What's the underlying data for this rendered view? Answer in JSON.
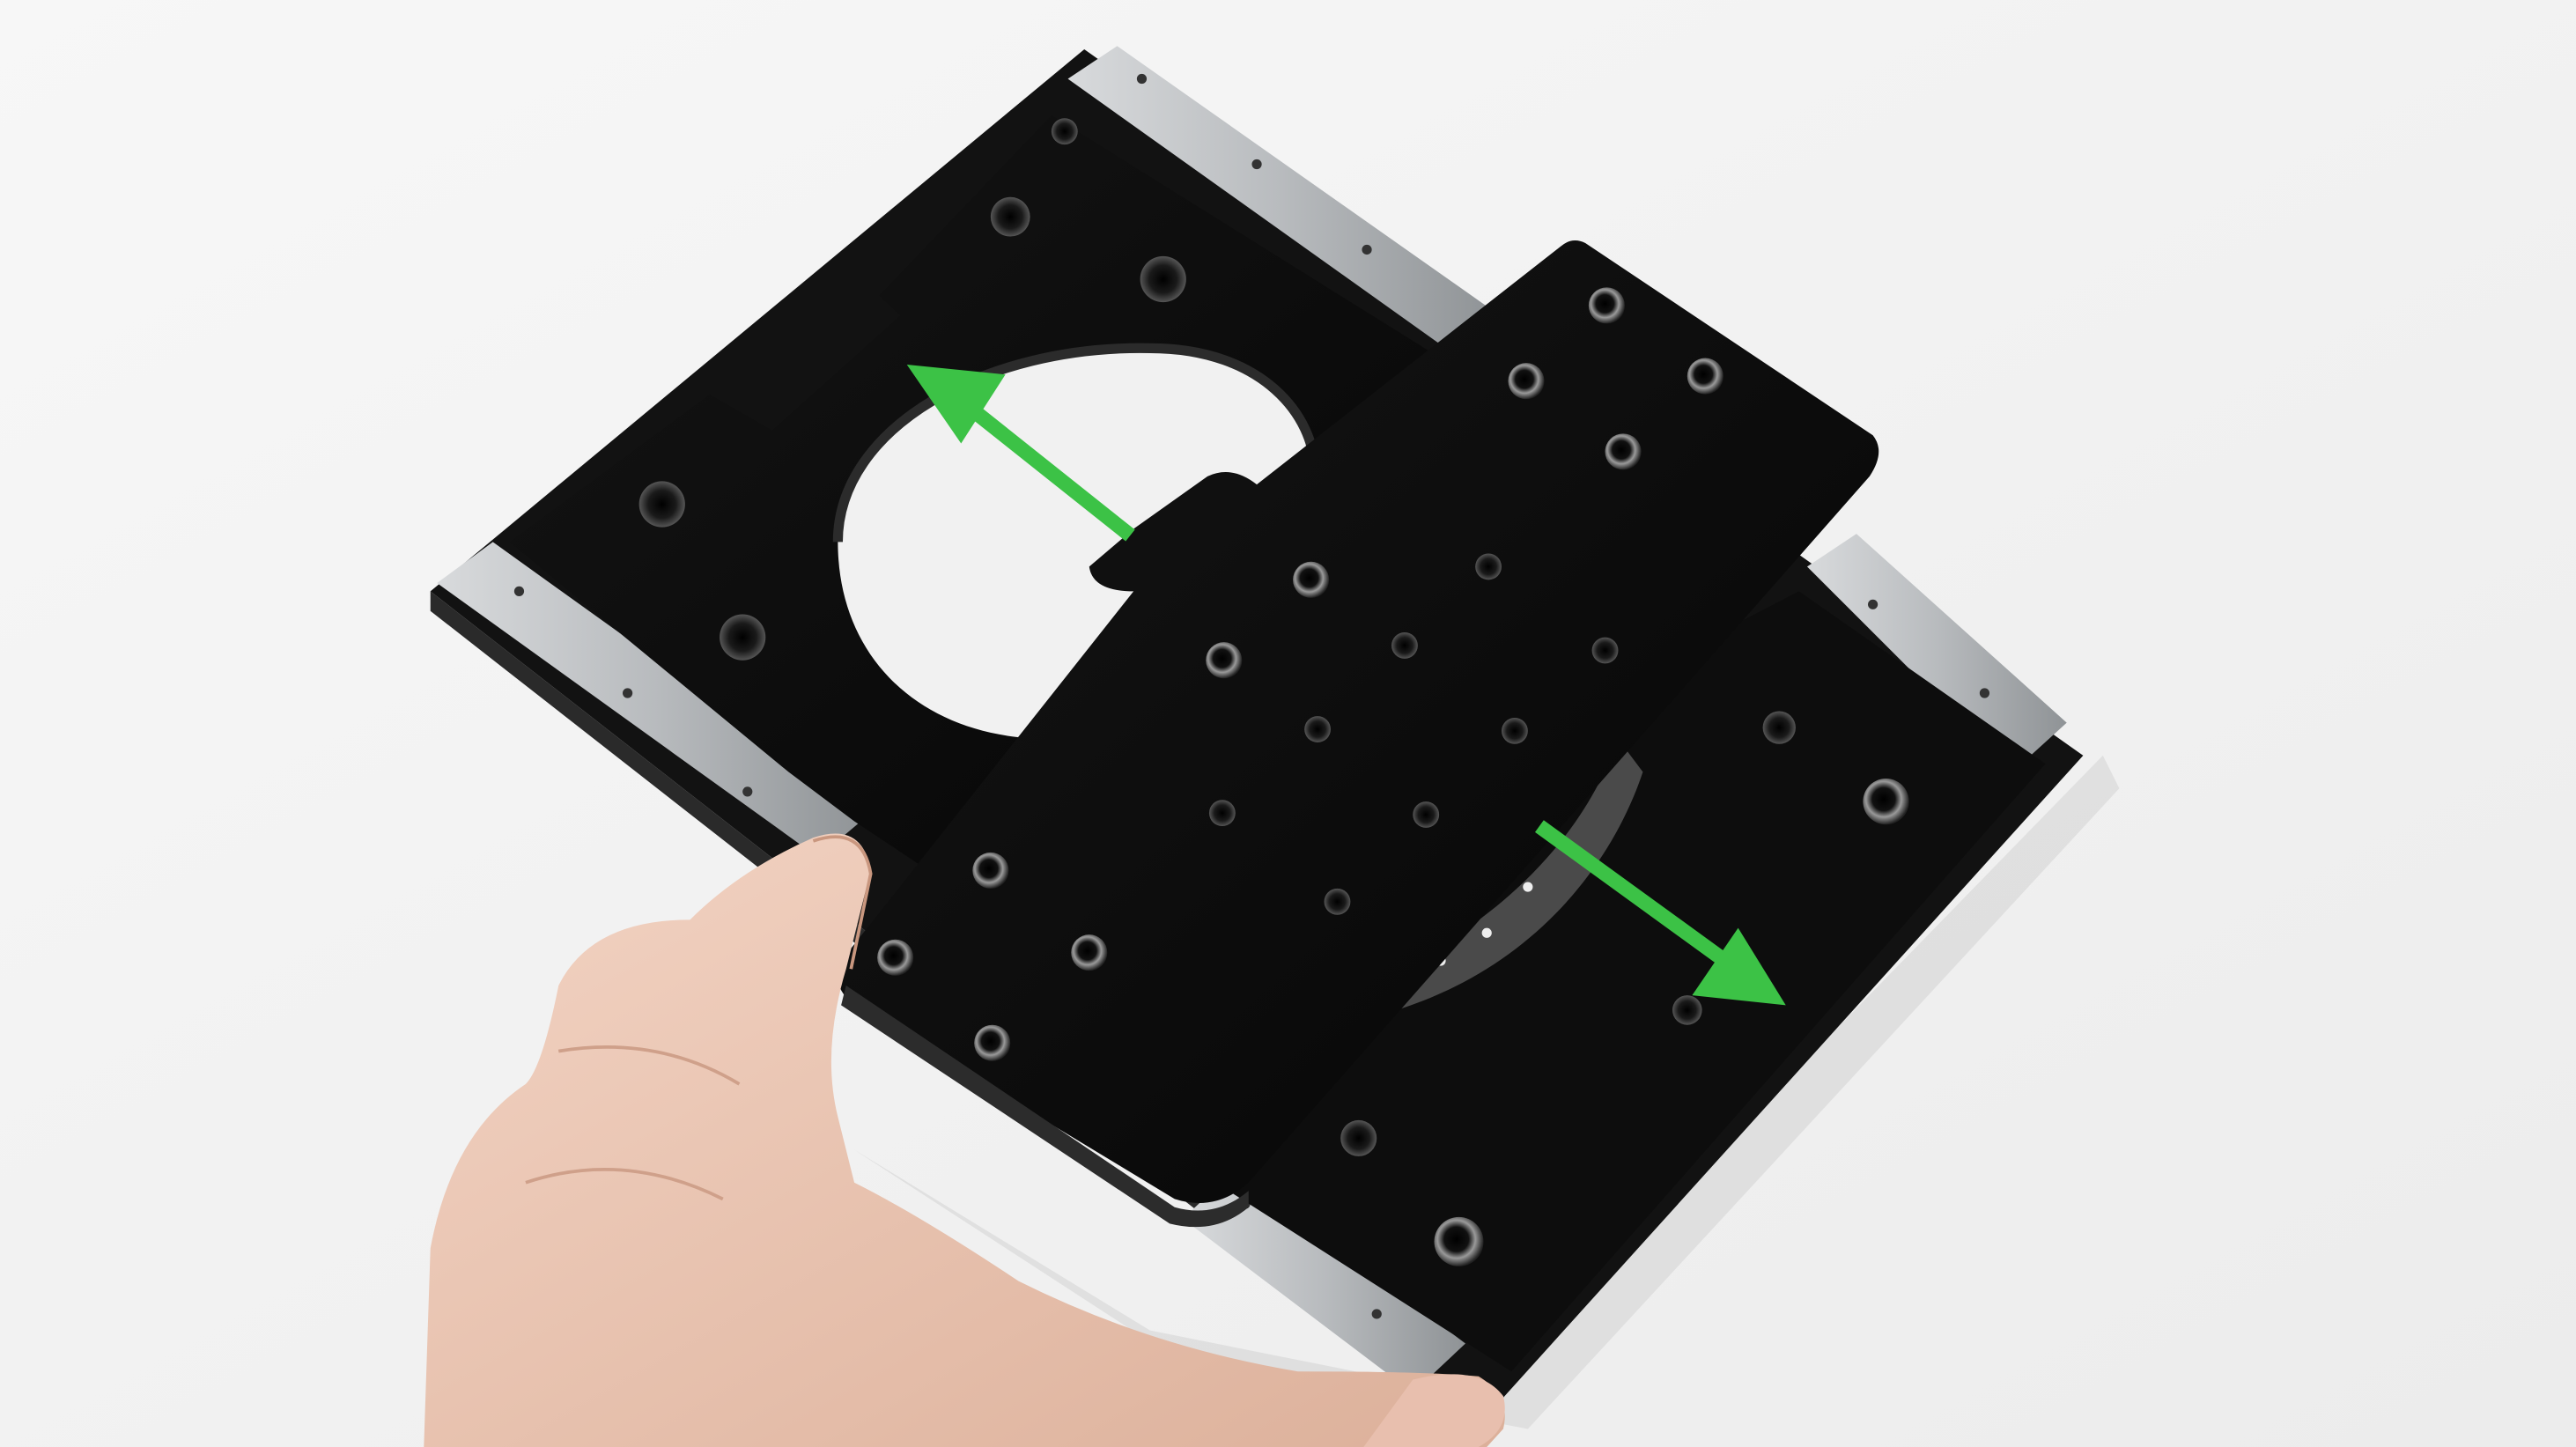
{
  "colors": {
    "background": "#f3f3f3",
    "plate": "#0b0b0b",
    "rail": "#b9bcbf",
    "arrow": "#3cc246",
    "skin": "#eec9b7"
  },
  "scene": {
    "subject": "linear-slide-stage-with-rails",
    "annotation_arrow_icon": "double-headed-arrow-icon",
    "hand": "hand-holding-carriage"
  }
}
